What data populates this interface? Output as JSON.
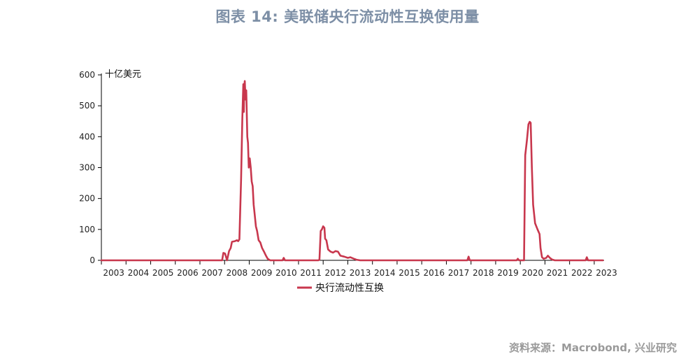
{
  "header": {
    "title": "图表 14: 美联储央行流动性互换使用量"
  },
  "footer": {
    "source": "资料来源：Macrobond, 兴业研究"
  },
  "chart_data": {
    "type": "line",
    "unit_label": "十亿美元",
    "ylim": [
      0,
      600
    ],
    "yticks": [
      0,
      100,
      200,
      300,
      400,
      500,
      600
    ],
    "xlim": [
      2003.0,
      2023.4
    ],
    "xticks": [
      "2003",
      "2004",
      "2005",
      "2006",
      "2007",
      "2008",
      "2009",
      "2010",
      "2011",
      "2012",
      "2013",
      "2014",
      "2015",
      "2016",
      "2017",
      "2018",
      "2019",
      "2020",
      "2021",
      "2022",
      "2023"
    ],
    "legend": "bottom-center",
    "series": [
      {
        "name": "央行流动性互换",
        "color": "#c8374d",
        "points": [
          [
            2003.0,
            0
          ],
          [
            2007.9,
            0
          ],
          [
            2007.95,
            24
          ],
          [
            2008.02,
            22
          ],
          [
            2008.1,
            0
          ],
          [
            2008.18,
            30
          ],
          [
            2008.25,
            40
          ],
          [
            2008.3,
            60
          ],
          [
            2008.42,
            62
          ],
          [
            2008.5,
            65
          ],
          [
            2008.55,
            62
          ],
          [
            2008.6,
            68
          ],
          [
            2008.67,
            260
          ],
          [
            2008.72,
            460
          ],
          [
            2008.76,
            570
          ],
          [
            2008.78,
            480
          ],
          [
            2008.8,
            565
          ],
          [
            2008.82,
            580
          ],
          [
            2008.85,
            520
          ],
          [
            2008.88,
            550
          ],
          [
            2008.92,
            400
          ],
          [
            2008.95,
            380
          ],
          [
            2008.98,
            300
          ],
          [
            2009.02,
            330
          ],
          [
            2009.06,
            300
          ],
          [
            2009.1,
            255
          ],
          [
            2009.14,
            240
          ],
          [
            2009.18,
            180
          ],
          [
            2009.22,
            150
          ],
          [
            2009.27,
            110
          ],
          [
            2009.32,
            95
          ],
          [
            2009.38,
            65
          ],
          [
            2009.45,
            58
          ],
          [
            2009.52,
            40
          ],
          [
            2009.6,
            28
          ],
          [
            2009.68,
            15
          ],
          [
            2009.75,
            5
          ],
          [
            2009.85,
            0
          ],
          [
            2010.35,
            0
          ],
          [
            2010.4,
            8
          ],
          [
            2010.45,
            0
          ],
          [
            2011.8,
            0
          ],
          [
            2011.85,
            2
          ],
          [
            2011.9,
            95
          ],
          [
            2011.95,
            100
          ],
          [
            2012.0,
            110
          ],
          [
            2012.05,
            105
          ],
          [
            2012.08,
            70
          ],
          [
            2012.13,
            65
          ],
          [
            2012.2,
            35
          ],
          [
            2012.3,
            28
          ],
          [
            2012.4,
            25
          ],
          [
            2012.5,
            30
          ],
          [
            2012.6,
            28
          ],
          [
            2012.7,
            15
          ],
          [
            2012.85,
            12
          ],
          [
            2013.0,
            8
          ],
          [
            2013.1,
            10
          ],
          [
            2013.25,
            5
          ],
          [
            2013.35,
            2
          ],
          [
            2013.5,
            0
          ],
          [
            2017.85,
            0
          ],
          [
            2017.9,
            12
          ],
          [
            2017.95,
            0
          ],
          [
            2019.85,
            0
          ],
          [
            2019.9,
            5
          ],
          [
            2019.95,
            0
          ],
          [
            2020.15,
            0
          ],
          [
            2020.2,
            340
          ],
          [
            2020.27,
            390
          ],
          [
            2020.33,
            440
          ],
          [
            2020.38,
            448
          ],
          [
            2020.42,
            445
          ],
          [
            2020.47,
            300
          ],
          [
            2020.52,
            180
          ],
          [
            2020.6,
            120
          ],
          [
            2020.7,
            100
          ],
          [
            2020.78,
            85
          ],
          [
            2020.82,
            40
          ],
          [
            2020.88,
            10
          ],
          [
            2020.95,
            5
          ],
          [
            2021.05,
            8
          ],
          [
            2021.12,
            15
          ],
          [
            2021.2,
            8
          ],
          [
            2021.28,
            3
          ],
          [
            2021.4,
            0
          ],
          [
            2022.65,
            0
          ],
          [
            2022.7,
            10
          ],
          [
            2022.75,
            0
          ],
          [
            2023.35,
            0
          ]
        ]
      }
    ]
  }
}
